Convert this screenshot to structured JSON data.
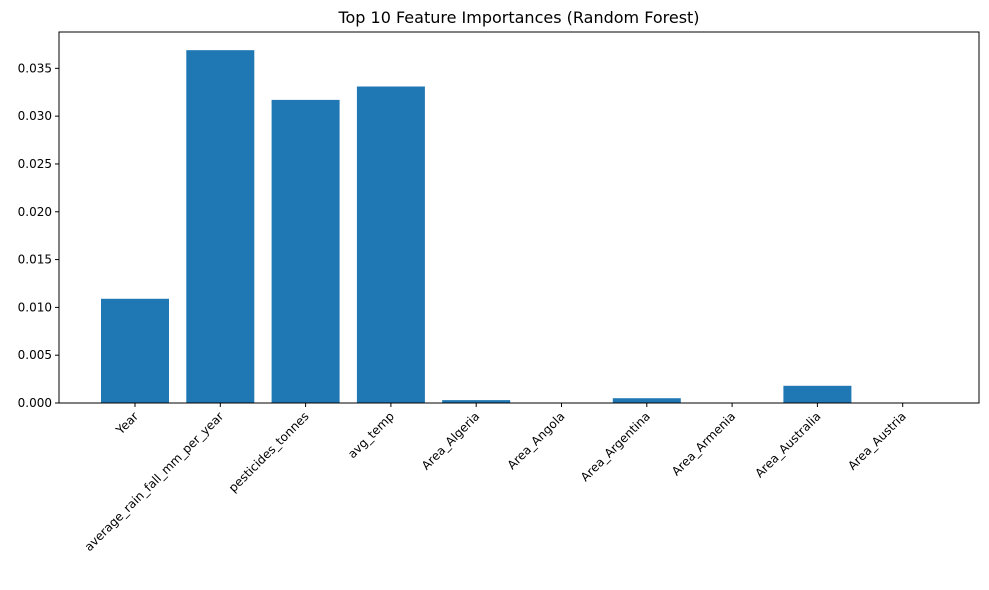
{
  "chart_data": {
    "type": "bar",
    "title": "Top 10 Feature Importances (Random Forest)",
    "xlabel": "",
    "ylabel": "",
    "categories": [
      "Year",
      "average_rain_fall_mm_per_year",
      "pesticides_tonnes",
      "avg_temp",
      "Area_Algeria",
      "Area_Angola",
      "Area_Argentina",
      "Area_Armenia",
      "Area_Australia",
      "Area_Austria"
    ],
    "values": [
      0.0109,
      0.0369,
      0.0317,
      0.0331,
      0.0003,
      3e-05,
      0.0005,
      2e-05,
      0.0018,
      1e-05
    ],
    "ylim": [
      0,
      0.0388
    ],
    "yticks": [
      0.0,
      0.005,
      0.01,
      0.015,
      0.02,
      0.025,
      0.03,
      0.035
    ],
    "ytick_labels": [
      "0.000",
      "0.005",
      "0.010",
      "0.015",
      "0.020",
      "0.025",
      "0.030",
      "0.035"
    ],
    "grid": false,
    "bar_color": "#1f77b4"
  }
}
